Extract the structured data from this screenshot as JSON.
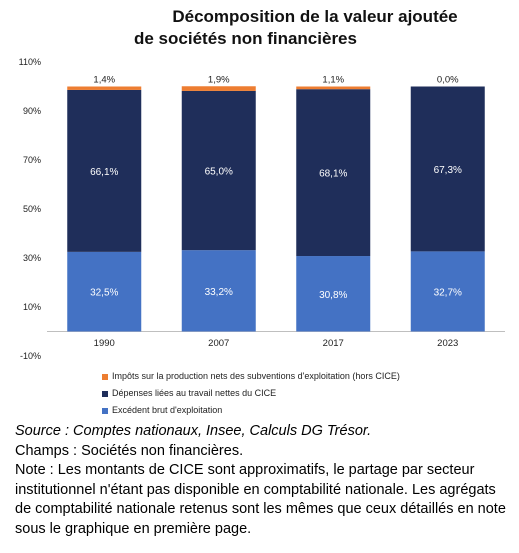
{
  "chart_data": {
    "type": "bar",
    "stacked": true,
    "title_line1": "Décomposition de la valeur ajoutée",
    "title_line2": "de sociétés non financières",
    "categories": [
      "1990",
      "2007",
      "2017",
      "2023"
    ],
    "series": [
      {
        "name": "Excédent brut d'exploitation",
        "color": "#4472c4",
        "values": [
          32.5,
          33.2,
          30.8,
          32.7
        ],
        "labels": [
          "32,5%",
          "33,2%",
          "30,8%",
          "32,7%"
        ]
      },
      {
        "name": "Dépenses liées au travail nettes du CICE",
        "color": "#1f2e5a",
        "values": [
          66.1,
          65.0,
          68.1,
          67.3
        ],
        "labels": [
          "66,1%",
          "65,0%",
          "68,1%",
          "67,3%"
        ]
      },
      {
        "name": "Impôts sur la production nets des subventions d'exploitation (hors CICE)",
        "color": "#ed7d31",
        "values": [
          1.4,
          1.9,
          1.1,
          0.0
        ],
        "labels": [
          "1,4%",
          "1,9%",
          "1,1%",
          "0,0%"
        ]
      }
    ],
    "ylim": [
      -10,
      110
    ],
    "yticks": [
      -10,
      10,
      30,
      50,
      70,
      90,
      110
    ],
    "ytick_labels": [
      "-10%",
      "10%",
      "30%",
      "50%",
      "70%",
      "90%",
      "110%"
    ],
    "grid": false,
    "legend": "bottom"
  },
  "notes": {
    "source": "Source : Comptes nationaux, Insee, Calculs DG Trésor.",
    "champs": "Champs : Sociétés non financières.",
    "note": "Note : Les montants de CICE sont approximatifs, le partage par secteur institutionnel n'étant pas disponible en comptabilité nationale. Les agrégats de comptabilité nationale retenus sont les mêmes que ceux détaillés en note sous le graphique en première page."
  }
}
